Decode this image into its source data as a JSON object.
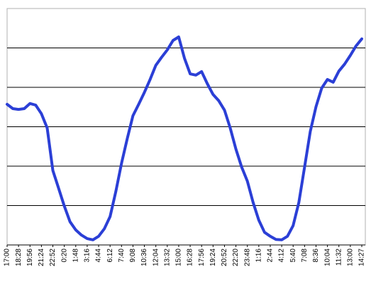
{
  "chart_data": {
    "type": "line",
    "categories": [
      "17:00",
      null,
      "18:28",
      null,
      "19:56",
      null,
      "21:24",
      null,
      "22:52",
      null,
      "0:20",
      null,
      "1:48",
      null,
      "3:16",
      null,
      "4:44",
      null,
      "6:12",
      null,
      "7:40",
      null,
      "9:08",
      null,
      "10:36",
      null,
      "12:04",
      null,
      "13:32",
      null,
      "15:00",
      null,
      "16:28",
      null,
      "17:56",
      null,
      "19:24",
      null,
      "20:52",
      null,
      "22:20",
      null,
      "23:48",
      null,
      "1:16",
      null,
      "2:44",
      null,
      "4:12",
      null,
      "5:40",
      null,
      "7:08",
      null,
      "8:36",
      null,
      "10:04",
      null,
      "11:32",
      null,
      "13:00",
      null,
      "14:27"
    ],
    "values": [
      3.57,
      3.46,
      3.44,
      3.46,
      3.59,
      3.55,
      3.33,
      2.97,
      1.89,
      1.44,
      0.99,
      0.59,
      0.38,
      0.25,
      0.16,
      0.13,
      0.22,
      0.41,
      0.72,
      1.35,
      2.07,
      2.7,
      3.28,
      3.57,
      3.87,
      4.2,
      4.56,
      4.76,
      4.95,
      5.19,
      5.28,
      4.74,
      4.34,
      4.31,
      4.4,
      4.09,
      3.82,
      3.66,
      3.42,
      2.97,
      2.43,
      1.98,
      1.62,
      1.08,
      0.63,
      0.32,
      0.22,
      0.14,
      0.13,
      0.22,
      0.49,
      1.08,
      1.98,
      2.88,
      3.51,
      3.98,
      4.2,
      4.13,
      4.41,
      4.59,
      4.81,
      5.05,
      5.23
    ],
    "color": "#2b3fd6",
    "ylim": [
      0,
      6
    ],
    "yticks": [
      1,
      2,
      3,
      4,
      5
    ],
    "grid": true
  }
}
